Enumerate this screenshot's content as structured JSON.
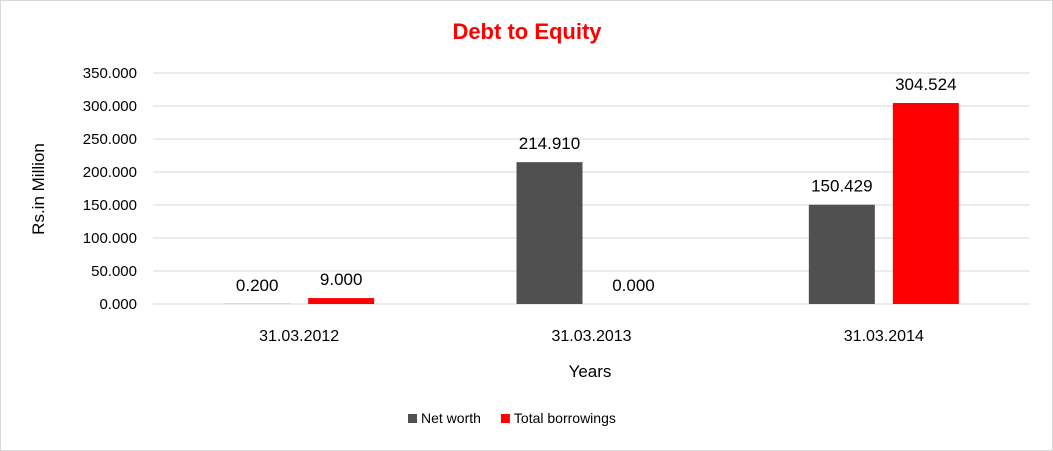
{
  "chart_data": {
    "type": "bar",
    "title": "Debt to Equity",
    "xlabel": "Years",
    "ylabel": "Rs.in Million",
    "categories": [
      "31.03.2012",
      "31.03.2013",
      "31.03.2014"
    ],
    "series": [
      {
        "name": "Net worth",
        "color": "#505050",
        "values": [
          0.2,
          214.91,
          150.429
        ],
        "labels": [
          "0.200",
          "214.910",
          "150.429"
        ]
      },
      {
        "name": "Total borrowings",
        "color": "#ff0000",
        "values": [
          9.0,
          0.0,
          304.524
        ],
        "labels": [
          "9.000",
          "0.000",
          "304.524"
        ]
      }
    ],
    "ylim": [
      0,
      350
    ],
    "yticks": [
      0,
      50,
      100,
      150,
      200,
      250,
      300,
      350
    ],
    "ytick_labels": [
      "0.000",
      "50.000",
      "100.000",
      "150.000",
      "200.000",
      "250.000",
      "300.000",
      "350.000"
    ],
    "grid": true,
    "legend_position": "bottom",
    "title_color": "#ff0000"
  }
}
